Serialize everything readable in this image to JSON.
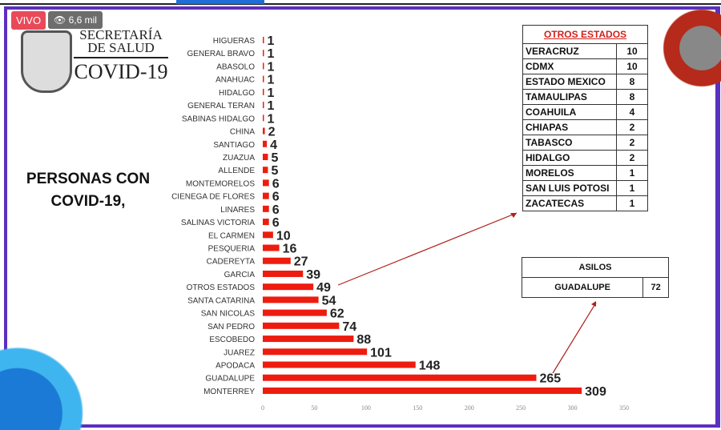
{
  "stream": {
    "live_label": "VIVO",
    "views": "6,6 mil",
    "eye_icon": "eye-icon"
  },
  "logo": {
    "line1": "SECRETARÍA",
    "line2": "DE SALUD",
    "line3": "COVID-19"
  },
  "headline": {
    "line1": "PERSONAS CON",
    "line2": "COVID-19,"
  },
  "colors": {
    "bar": "#ee1c0e",
    "frame": "#5b2fc0",
    "live": "#e94a5a",
    "table_title": "#d2201c"
  },
  "chart_data": {
    "type": "bar",
    "orientation": "horizontal",
    "categories": [
      "HIGUERAS",
      "GENERAL BRAVO",
      "ABASOLO",
      "ANAHUAC",
      "HIDALGO",
      "GENERAL TERAN",
      "SABINAS HIDALGO",
      "CHINA",
      "SANTIAGO",
      "ZUAZUA",
      "ALLENDE",
      "MONTEMORELOS",
      "CIENEGA DE FLORES",
      "LINARES",
      "SALINAS VICTORIA",
      "EL CARMEN",
      "PESQUERIA",
      "CADEREYTA",
      "GARCIA",
      "OTROS ESTADOS",
      "SANTA CATARINA",
      "SAN NICOLAS",
      "SAN PEDRO",
      "ESCOBEDO",
      "JUAREZ",
      "APODACA",
      "GUADALUPE",
      "MONTERREY"
    ],
    "values": [
      1,
      1,
      1,
      1,
      1,
      1,
      1,
      2,
      4,
      5,
      5,
      6,
      6,
      6,
      6,
      10,
      16,
      27,
      39,
      49,
      54,
      62,
      74,
      88,
      101,
      148,
      265,
      309
    ],
    "xlim": [
      0,
      350
    ],
    "xticks": [
      0,
      50,
      100,
      150,
      200,
      250,
      300,
      350
    ],
    "title": "PERSONAS CON COVID-19,",
    "xlabel": "",
    "ylabel": "",
    "grid": false
  },
  "otros_estados": {
    "title": "OTROS ESTADOS",
    "rows": [
      {
        "name": "VERACRUZ",
        "value": "10"
      },
      {
        "name": "CDMX",
        "value": "10"
      },
      {
        "name": "ESTADO MEXICO",
        "value": "8"
      },
      {
        "name": "TAMAULIPAS",
        "value": "8"
      },
      {
        "name": "COAHUILA",
        "value": "4"
      },
      {
        "name": "CHIAPAS",
        "value": "2"
      },
      {
        "name": "TABASCO",
        "value": "2"
      },
      {
        "name": "HIDALGO",
        "value": "2"
      },
      {
        "name": "MORELOS",
        "value": "1"
      },
      {
        "name": "SAN LUIS POTOSI",
        "value": "1"
      },
      {
        "name": "ZACATECAS",
        "value": "1"
      }
    ]
  },
  "asilos": {
    "title": "ASILOS",
    "name": "GUADALUPE",
    "value": "72"
  }
}
